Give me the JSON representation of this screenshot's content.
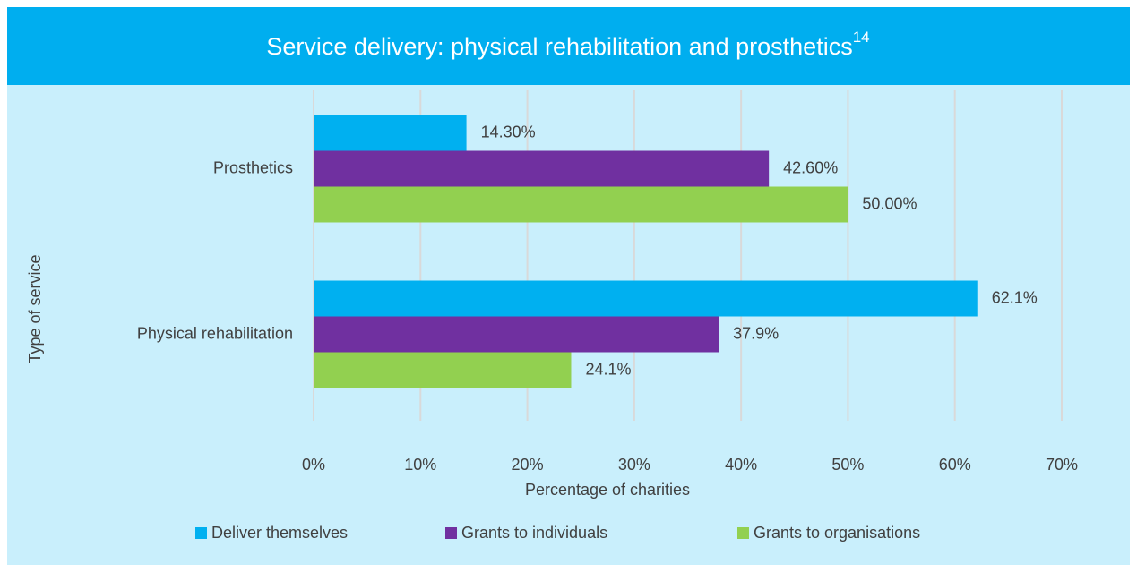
{
  "chart_data": {
    "type": "hbar",
    "title": "Service delivery: physical rehabilitation and prosthetics",
    "title_note": "14",
    "x_label": "Percentage of charities",
    "y_label": "Type of service",
    "categories": [
      "Prosthetics",
      "Physical rehabilitation"
    ],
    "series": [
      {
        "name": "Deliver themselves",
        "color": "#00b0f0",
        "values": [
          14.3,
          62.1
        ],
        "value_labels": [
          "14.30%",
          "62.1%"
        ]
      },
      {
        "name": "Grants to individuals",
        "color": "#7030a0",
        "values": [
          42.6,
          37.9
        ],
        "value_labels": [
          "42.60%",
          "37.9%"
        ]
      },
      {
        "name": "Grants to organisations",
        "color": "#92d050",
        "values": [
          50.0,
          24.1
        ],
        "value_labels": [
          "50.00%",
          "24.1%"
        ]
      }
    ],
    "xlim": [
      0,
      70
    ],
    "xticks": [
      {
        "value": 0,
        "label": "0%"
      },
      {
        "value": 10,
        "label": "10%"
      },
      {
        "value": 20,
        "label": "20%"
      },
      {
        "value": 30,
        "label": "30%"
      },
      {
        "value": 40,
        "label": "40%"
      },
      {
        "value": 50,
        "label": "50%"
      },
      {
        "value": 60,
        "label": "60%"
      },
      {
        "value": 70,
        "label": "70%"
      }
    ],
    "grid": true,
    "legend": "bottom"
  }
}
